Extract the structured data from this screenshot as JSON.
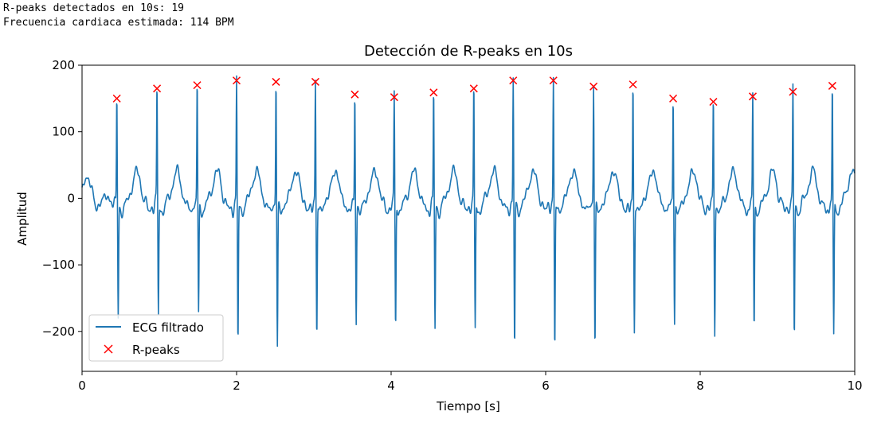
{
  "output": {
    "line1": "R-peaks detectados en 10s: 19",
    "line2": "Frecuencia cardiaca estimada: 114 BPM"
  },
  "chart_data": {
    "type": "line",
    "title": "Detección de R-peaks en 10s",
    "xlabel": "Tiempo [s]",
    "ylabel": "Amplitud",
    "xlim": [
      0,
      10
    ],
    "ylim": [
      -260,
      200
    ],
    "xticks": [
      0,
      2,
      4,
      6,
      8,
      10
    ],
    "xtick_labels": [
      "0",
      "2",
      "4",
      "6",
      "8",
      "10"
    ],
    "yticks": [
      200,
      100,
      0,
      -100,
      -200
    ],
    "ytick_labels": [
      "200",
      "100",
      "0",
      "−100",
      "−200"
    ],
    "grid": false,
    "legend_position": "bottom-left",
    "series": [
      {
        "name": "ECG filtrado",
        "kind": "line",
        "color": "#1f77b4",
        "r_peaks": [
          [
            0.45,
            150
          ],
          [
            0.97,
            165
          ],
          [
            1.49,
            170
          ],
          [
            2.0,
            177
          ],
          [
            2.51,
            175
          ],
          [
            3.02,
            175
          ],
          [
            3.53,
            156
          ],
          [
            4.04,
            152
          ],
          [
            4.55,
            159
          ],
          [
            5.07,
            165
          ],
          [
            5.58,
            177
          ],
          [
            6.1,
            177
          ],
          [
            6.62,
            168
          ],
          [
            7.13,
            171
          ],
          [
            7.65,
            150
          ],
          [
            8.17,
            145
          ],
          [
            8.68,
            153
          ],
          [
            9.2,
            160
          ],
          [
            9.71,
            169
          ]
        ],
        "s_troughs": [
          -185,
          -180,
          -180,
          -225,
          -228,
          -212,
          -190,
          -200,
          -202,
          -205,
          -230,
          -235,
          -228,
          -205,
          -192,
          -205,
          -205,
          -212,
          -217
        ]
      },
      {
        "name": "R-peaks",
        "kind": "scatter",
        "marker": "x",
        "color": "#ff0000",
        "x": [
          0.45,
          0.97,
          1.49,
          2.0,
          2.51,
          3.02,
          3.53,
          4.04,
          4.55,
          5.07,
          5.58,
          6.1,
          6.62,
          7.13,
          7.65,
          8.17,
          8.68,
          9.2,
          9.71
        ],
        "y": [
          150,
          165,
          170,
          177,
          175,
          175,
          156,
          152,
          159,
          165,
          177,
          177,
          168,
          171,
          150,
          145,
          153,
          160,
          169
        ]
      }
    ]
  }
}
